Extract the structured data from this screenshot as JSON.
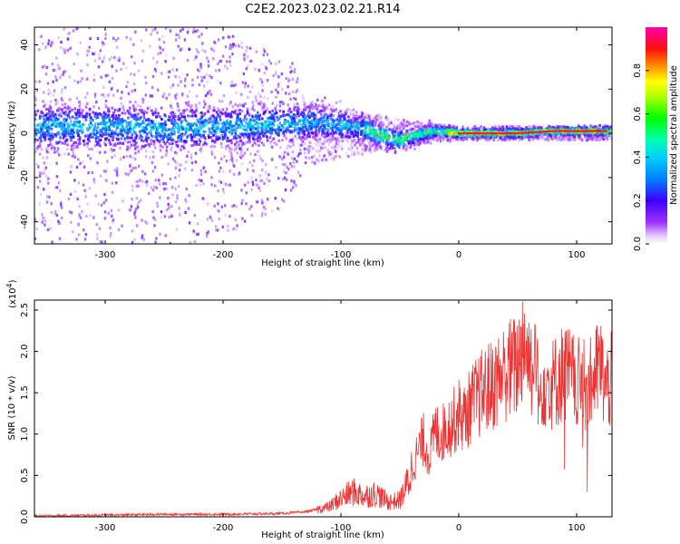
{
  "figure": {
    "title": "C2E2.2023.023.02.21.R14"
  },
  "chart_data": [
    {
      "type": "heatmap",
      "title": "",
      "xlabel": "Height of straight line (km)",
      "ylabel": "Frequency (Hz)",
      "xlim": [
        -360,
        130
      ],
      "ylim": [
        -50,
        48
      ],
      "xticks": [
        -300,
        -200,
        -100,
        0,
        100
      ],
      "yticks": [
        -40,
        -20,
        0,
        20,
        40
      ],
      "colorbar": {
        "label": "Normalized spectral amplitude",
        "range": [
          0.0,
          1.0
        ],
        "ticks": [
          0.0,
          0.2,
          0.4,
          0.6,
          0.8
        ],
        "colormap": "gist_ncar-like (violet → blue → cyan → green → yellow → red → magenta)"
      },
      "band_center_hz": [
        {
          "x": -350,
          "y": 3
        },
        {
          "x": -300,
          "y": 3
        },
        {
          "x": -250,
          "y": 2
        },
        {
          "x": -200,
          "y": 3
        },
        {
          "x": -150,
          "y": 4
        },
        {
          "x": -120,
          "y": 5
        },
        {
          "x": -100,
          "y": 4
        },
        {
          "x": -80,
          "y": 2
        },
        {
          "x": -60,
          "y": -2
        },
        {
          "x": -50,
          "y": -3
        },
        {
          "x": -40,
          "y": -1
        },
        {
          "x": -20,
          "y": 1
        },
        {
          "x": 0,
          "y": 0
        },
        {
          "x": 50,
          "y": 0
        },
        {
          "x": 80,
          "y": 1
        },
        {
          "x": 100,
          "y": 1
        },
        {
          "x": 125,
          "y": 1
        }
      ],
      "band_halfwidth_hz": [
        {
          "x": -350,
          "y": 10
        },
        {
          "x": -200,
          "y": 9
        },
        {
          "x": -120,
          "y": 8
        },
        {
          "x": -80,
          "y": 6
        },
        {
          "x": -50,
          "y": 5
        },
        {
          "x": -20,
          "y": 3
        },
        {
          "x": 0,
          "y": 2
        },
        {
          "x": 125,
          "y": 2
        }
      ],
      "scatter_extent_hz": [
        {
          "x": -355,
          "y": 48
        },
        {
          "x": -230,
          "y": 48
        },
        {
          "x": -180,
          "y": 40
        },
        {
          "x": -140,
          "y": 30
        },
        {
          "x": -130,
          "y": 14
        },
        {
          "x": -90,
          "y": 10
        },
        {
          "x": -50,
          "y": 6
        },
        {
          "x": 0,
          "y": 3
        },
        {
          "x": 125,
          "y": 3
        }
      ]
    },
    {
      "type": "line",
      "title": "",
      "xlabel": "Height of straight line (km)",
      "ylabel": "SNR (10 * v/v)",
      "yscale_label": "(x10",
      "yscale_exp": "4",
      "yscale_close": ")",
      "xlim": [
        -360,
        130
      ],
      "ylim": [
        0,
        2.62
      ],
      "xticks": [
        -300,
        -200,
        -100,
        0,
        100
      ],
      "yticks": [
        0.0,
        0.5,
        1.0,
        1.5,
        2.0,
        2.5
      ],
      "color": "#ee3333",
      "series": [
        {
          "x": [
            -360,
            -300,
            -250,
            -200,
            -150,
            -130,
            -110,
            -100,
            -90,
            -80,
            -70,
            -60,
            -50,
            -45,
            -40,
            -35,
            -30,
            -25,
            -20,
            -15,
            -10,
            -5,
            0,
            5,
            10,
            20,
            30,
            40,
            50,
            55,
            60,
            70,
            80,
            90,
            100,
            110,
            120,
            125,
            130
          ],
          "values": [
            0.01,
            0.02,
            0.03,
            0.03,
            0.04,
            0.06,
            0.12,
            0.22,
            0.3,
            0.25,
            0.28,
            0.18,
            0.2,
            0.35,
            0.55,
            0.75,
            0.9,
            0.7,
            1.0,
            0.95,
            1.05,
            1.1,
            1.2,
            1.15,
            1.3,
            1.45,
            1.55,
            1.7,
            1.75,
            2.1,
            1.8,
            1.6,
            1.55,
            1.7,
            1.55,
            1.5,
            1.75,
            1.5,
            1.6
          ]
        }
      ]
    }
  ]
}
